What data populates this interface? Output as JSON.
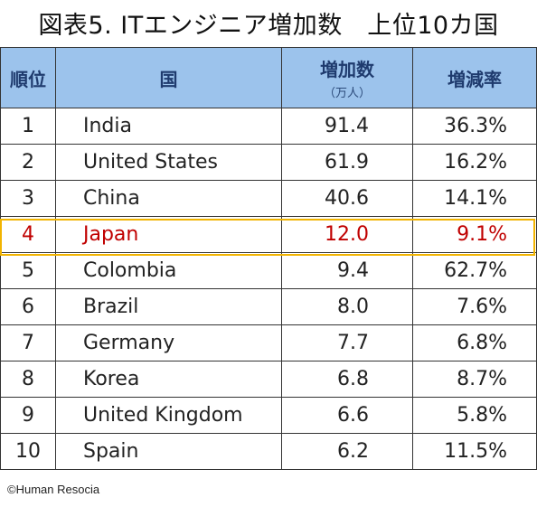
{
  "title": "図表5. ITエンジニア増加数　上位10カ国",
  "headers": {
    "rank": "順位",
    "country": "国",
    "increase": "増加数",
    "increase_unit": "（万人）",
    "rate": "増減率"
  },
  "rows": [
    {
      "rank": "1",
      "country": "India",
      "increase": "91.4",
      "rate": "36.3%"
    },
    {
      "rank": "2",
      "country": "United States",
      "increase": "61.9",
      "rate": "16.2%"
    },
    {
      "rank": "3",
      "country": "China",
      "increase": "40.6",
      "rate": "14.1%"
    },
    {
      "rank": "4",
      "country": "Japan",
      "increase": "12.0",
      "rate": "9.1%"
    },
    {
      "rank": "5",
      "country": "Colombia",
      "increase": "9.4",
      "rate": "62.7%"
    },
    {
      "rank": "6",
      "country": "Brazil",
      "increase": "8.0",
      "rate": "7.6%"
    },
    {
      "rank": "7",
      "country": "Germany",
      "increase": "7.7",
      "rate": "6.8%"
    },
    {
      "rank": "8",
      "country": "Korea",
      "increase": "6.8",
      "rate": "8.7%"
    },
    {
      "rank": "9",
      "country": "United Kingdom",
      "increase": "6.6",
      "rate": "5.8%"
    },
    {
      "rank": "10",
      "country": "Spain",
      "increase": "6.2",
      "rate": "11.5%"
    }
  ],
  "highlight_row": 4,
  "colors": {
    "header_bg": "#9cc3ec",
    "header_text": "#1f3b6e",
    "highlight_text": "#c00000",
    "highlight_border": "#f2b400"
  },
  "credit": "©Human Resocia"
}
